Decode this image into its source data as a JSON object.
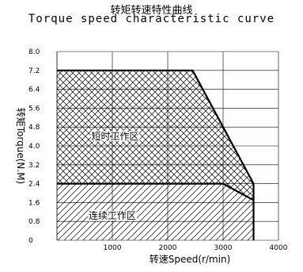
{
  "chart_data": {
    "type": "area",
    "title": "转矩转速特性曲线",
    "subtitle": "Torque speed characteristic curve",
    "xlabel": "转速Speed(r/min)",
    "ylabel": "转矩Torque(N.M)",
    "xlim": [
      0,
      4000
    ],
    "ylim": [
      0,
      8.0
    ],
    "x_ticks": [
      1000,
      2000,
      3000,
      4000
    ],
    "y_ticks": [
      0,
      0.8,
      1.6,
      2.4,
      3.2,
      4.0,
      4.8,
      5.6,
      6.4,
      7.2,
      8.0
    ],
    "y_tick_labels": [
      "0",
      "0.8",
      "1.6",
      "2.4",
      "3.2",
      "4.0",
      "4.8",
      "5.6",
      "6.4",
      "7.2",
      "8.0"
    ],
    "grid": true,
    "series": [
      {
        "region": "短时工作区",
        "x": [
          0,
          2450,
          3550,
          3550
        ],
        "y": [
          7.2,
          7.2,
          2.4,
          1.7
        ],
        "hatch": "cross"
      },
      {
        "region": "连续工作区",
        "x": [
          0,
          3000,
          3550,
          3550
        ],
        "y": [
          2.4,
          2.4,
          1.7,
          0
        ],
        "hatch": "diagonal"
      }
    ],
    "annotations": [
      {
        "text": "短时工作区",
        "x": 1050,
        "y": 4.4
      },
      {
        "text": "连续工作区",
        "x": 1000,
        "y": 1.05
      }
    ]
  }
}
